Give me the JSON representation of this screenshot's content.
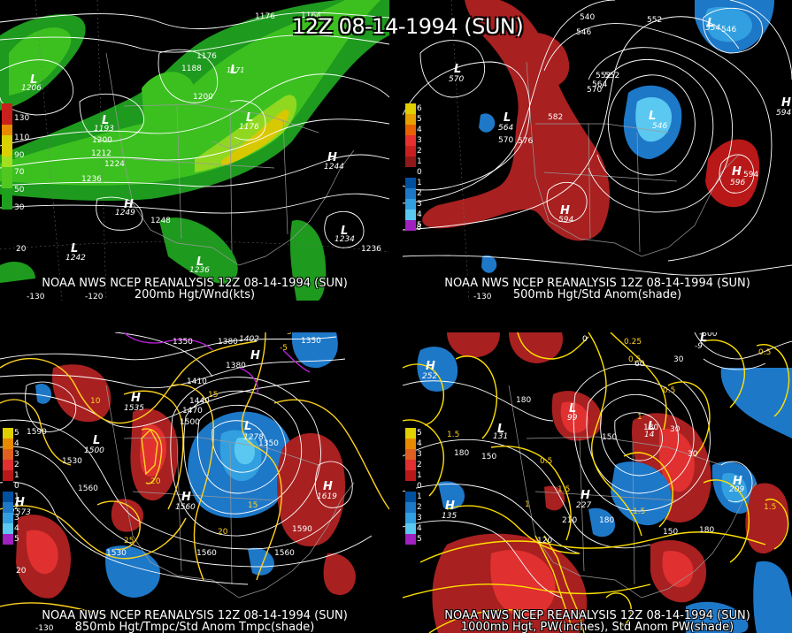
{
  "title": "12Z 08-14-1994 (SUN)",
  "panels": {
    "top_left": {
      "caption1": "NOAA NWS NCEP REANALYSIS 12Z 08-14-1994 (SUN)",
      "caption2": "200mb Hgt/Wnd(kts)",
      "legend": [
        "130",
        "110",
        "90",
        "70",
        "50",
        "30"
      ],
      "legend_colors": [
        "#c8201c",
        "#e88a00",
        "#d8d000",
        "#a0e020",
        "#50c820",
        "#1ea01e"
      ],
      "systems": [
        {
          "type": "L",
          "value": "1206"
        },
        {
          "type": "L",
          "value": "1193"
        },
        {
          "type": "L",
          "value": "1171"
        },
        {
          "type": "L",
          "value": "1176"
        },
        {
          "type": "H",
          "value": "1244"
        },
        {
          "type": "H",
          "value": "1249"
        },
        {
          "type": "L",
          "value": "1242"
        },
        {
          "type": "L",
          "value": "1236"
        },
        {
          "type": "L",
          "value": "1234"
        }
      ],
      "contours": [
        "1176",
        "1164",
        "1176",
        "1188",
        "1200",
        "1200",
        "1212",
        "1224",
        "1236",
        "1248",
        "1236"
      ],
      "lons": [
        "-130",
        "-120"
      ],
      "lats": [
        "20"
      ]
    },
    "top_right": {
      "caption1": "NOAA NWS NCEP REANALYSIS 12Z 08-14-1994 (SUN)",
      "caption2": "500mb Hgt/Std Anom(shade)",
      "legend": [
        "6",
        "5",
        "4",
        "3",
        "2",
        "1",
        "0",
        "1",
        "2",
        "3",
        "4",
        "5"
      ],
      "legend_colors": [
        "#e0d000",
        "#e8a000",
        "#e86000",
        "#e83030",
        "#c82020",
        "#901818",
        "#000000",
        "#0050a0",
        "#1e78c8",
        "#32a0e0",
        "#5ac8f0",
        "#a020c0"
      ],
      "systems": [
        {
          "type": "L",
          "value": "570"
        },
        {
          "type": "L",
          "value": "564"
        },
        {
          "type": "L",
          "value": "546"
        },
        {
          "type": "L",
          "value": "554"
        },
        {
          "type": "H",
          "value": "596"
        },
        {
          "type": "H",
          "value": "594"
        },
        {
          "type": "H",
          "value": "594"
        },
        {
          "type": "L",
          "value": "588"
        }
      ],
      "contours": [
        "540",
        "546",
        "552",
        "552",
        "558",
        "564",
        "570",
        "576",
        "582",
        "588",
        "594"
      ],
      "lons": [
        "-130"
      ],
      "lats": []
    },
    "bottom_left": {
      "caption1": "NOAA NWS NCEP REANALYSIS 12Z 08-14-1994 (SUN)",
      "caption2": "850mb Hgt/Tmpc/Std Anom Tmpc(shade)",
      "legend": [
        "5",
        "4",
        "3",
        "2",
        "1",
        "0",
        "1",
        "2",
        "3",
        "4",
        "5"
      ],
      "legend_colors": [
        "#e0d000",
        "#e88a00",
        "#e06020",
        "#e03030",
        "#b81818",
        "#000000",
        "#0050a0",
        "#1e78c8",
        "#32a0e0",
        "#5ac8f0",
        "#a020c0"
      ],
      "systems": [
        {
          "type": "H",
          "value": "1402"
        },
        {
          "type": "H",
          "value": "1535"
        },
        {
          "type": "L",
          "value": "1500"
        },
        {
          "type": "L",
          "value": "1278"
        },
        {
          "type": "H",
          "value": "1573"
        },
        {
          "type": "H",
          "value": "1560"
        },
        {
          "type": "H",
          "value": "1619"
        }
      ],
      "contours": [
        "1320",
        "1350",
        "1380",
        "1380",
        "1410",
        "1440",
        "1470",
        "1500",
        "1530",
        "1560",
        "1590",
        "1590",
        "1560",
        "1530",
        "1350"
      ],
      "isotherms": [
        "10",
        "15",
        "20",
        "25",
        "15",
        "20",
        "-5",
        "5"
      ],
      "lons": [
        "-130"
      ],
      "lats": [
        "20"
      ]
    },
    "bottom_right": {
      "caption1": "NOAA NWS NCEP REANALYSIS 12Z 08-14-1994 (SUN)",
      "caption2": "1000mb Hgt, PW(inches), Std Anom PW(shade)",
      "legend": [
        "5",
        "4",
        "3",
        "2",
        "1",
        "0",
        "1",
        "2",
        "3",
        "4",
        "5"
      ],
      "legend_colors": [
        "#e0d000",
        "#e88a00",
        "#e06020",
        "#e03030",
        "#b81818",
        "#000000",
        "#0050a0",
        "#1e78c8",
        "#32a0e0",
        "#5ac8f0",
        "#a020c0"
      ],
      "systems": [
        {
          "type": "H",
          "value": "252"
        },
        {
          "type": "L",
          "value": "131"
        },
        {
          "type": "L",
          "value": "99"
        },
        {
          "type": "L",
          "value": "14"
        },
        {
          "type": "H",
          "value": "135"
        },
        {
          "type": "H",
          "value": "227"
        },
        {
          "type": "H",
          "value": "209"
        },
        {
          "type": "L",
          "value": "-9"
        }
      ],
      "contours": [
        "180",
        "150",
        "120",
        "150",
        "180",
        "210",
        "180",
        "150",
        "-300",
        "0",
        "30",
        "60",
        "30",
        "30"
      ],
      "pw": [
        "0.25",
        "0.5",
        "0.5",
        "0.5",
        "1.5",
        "0.5",
        "1",
        "1.5",
        "1",
        "1.5",
        "1.5"
      ],
      "lons": [
        "-130"
      ],
      "lats": []
    }
  }
}
